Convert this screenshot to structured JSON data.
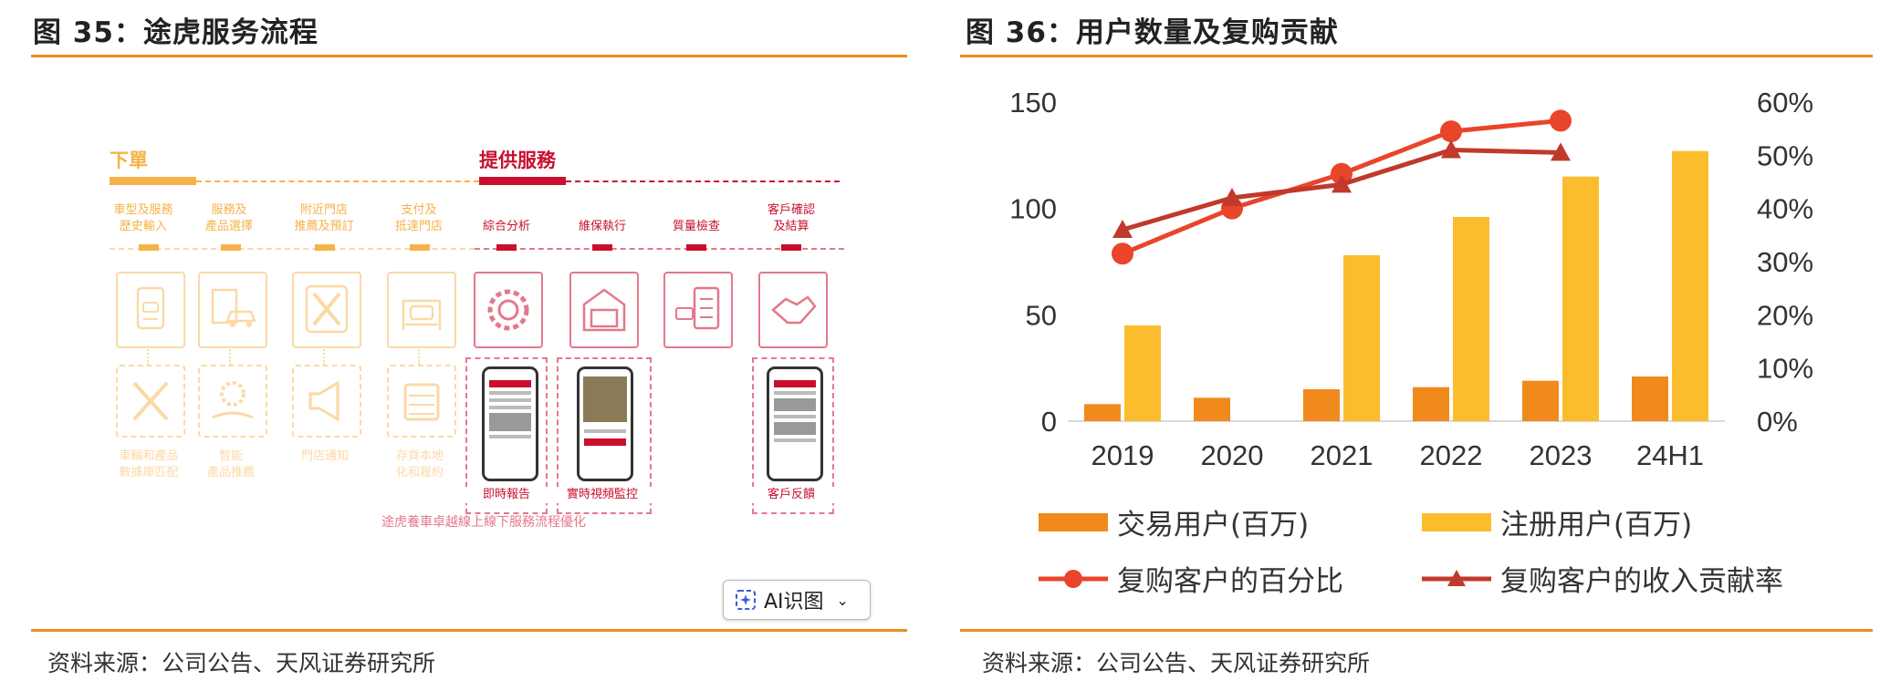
{
  "left": {
    "title": "图 35：途虎服务流程",
    "source": "资料来源：公司公告、天风证券研究所",
    "section_order": "下單",
    "section_service": "提供服務",
    "steps": [
      {
        "label": "車型及服務\n歷史輸入",
        "out": "車輛和產品\n數據庫匹配",
        "icon": "car-document-icon",
        "out_icon": "tools-icon"
      },
      {
        "label": "服務及\n產品選擇",
        "out": "智能\n產品推薦",
        "icon": "car-checklist-icon",
        "out_icon": "gear-hand-icon"
      },
      {
        "label": "附近門店\n推薦及預訂",
        "out": "門店通知",
        "icon": "wrench-screwdriver-icon",
        "out_icon": "megaphone-icon"
      },
      {
        "label": "支付及\n抵達門店",
        "out": "存貨本地\n化和履約",
        "icon": "car-lift-icon",
        "out_icon": "warehouse-icon"
      },
      {
        "label": "綜合分析",
        "out": "即時報告",
        "icon": "gear-wrench-icon",
        "out_icon": "phone-icon"
      },
      {
        "label": "維保執行",
        "out": "實時視頻監控",
        "icon": "garage-icon",
        "out_icon": "phone-icon"
      },
      {
        "label": "質量檢查",
        "out": "",
        "icon": "car-clipboard-icon",
        "out_icon": ""
      },
      {
        "label": "客戶確認\n及結算",
        "out": "客戶反饋",
        "icon": "handshake-icon",
        "out_icon": "phone-icon"
      }
    ],
    "caption": "途虎養車卓越線上線下服務流程優化",
    "ai_button": "AI识图",
    "colors": {
      "orange": "#f5b24a",
      "red": "#c8102e",
      "orange_light": "#fbd9a6",
      "red_light": "#e4788b"
    }
  },
  "right": {
    "title": "图 36：用户数量及复购贡献",
    "source": "资料来源：公司公告、天风证券研究所",
    "chart_data": {
      "type": "bar",
      "categories": [
        "2019",
        "2020",
        "2021",
        "2022",
        "2023",
        "24H1"
      ],
      "series": [
        {
          "name": "交易用户(百万)",
          "kind": "bar",
          "axis": "left",
          "color": "#f08a1d",
          "values": [
            8,
            11,
            15,
            16,
            19,
            21
          ]
        },
        {
          "name": "注册用户(百万)",
          "kind": "bar",
          "axis": "left",
          "color": "#fbbd2e",
          "values": [
            45,
            null,
            78,
            96,
            115,
            127
          ]
        },
        {
          "name": "复购客户的百分比",
          "kind": "line-circle",
          "axis": "right",
          "color": "#e8452a",
          "values": [
            31.5,
            40,
            46.5,
            54.5,
            56.5,
            null
          ]
        },
        {
          "name": "复购客户的收入贡献率",
          "kind": "line-triangle",
          "axis": "right",
          "color": "#c0392b",
          "values": [
            36,
            42,
            44.5,
            51,
            50.5,
            null
          ]
        }
      ],
      "y_left": {
        "min": 0,
        "max": 150,
        "ticks": [
          "0",
          "50",
          "100",
          "150"
        ]
      },
      "y_right": {
        "min": 0,
        "max": 60,
        "ticks": [
          "0%",
          "10%",
          "20%",
          "30%",
          "40%",
          "50%",
          "60%"
        ]
      },
      "grid": false,
      "legend": "bottom"
    }
  }
}
